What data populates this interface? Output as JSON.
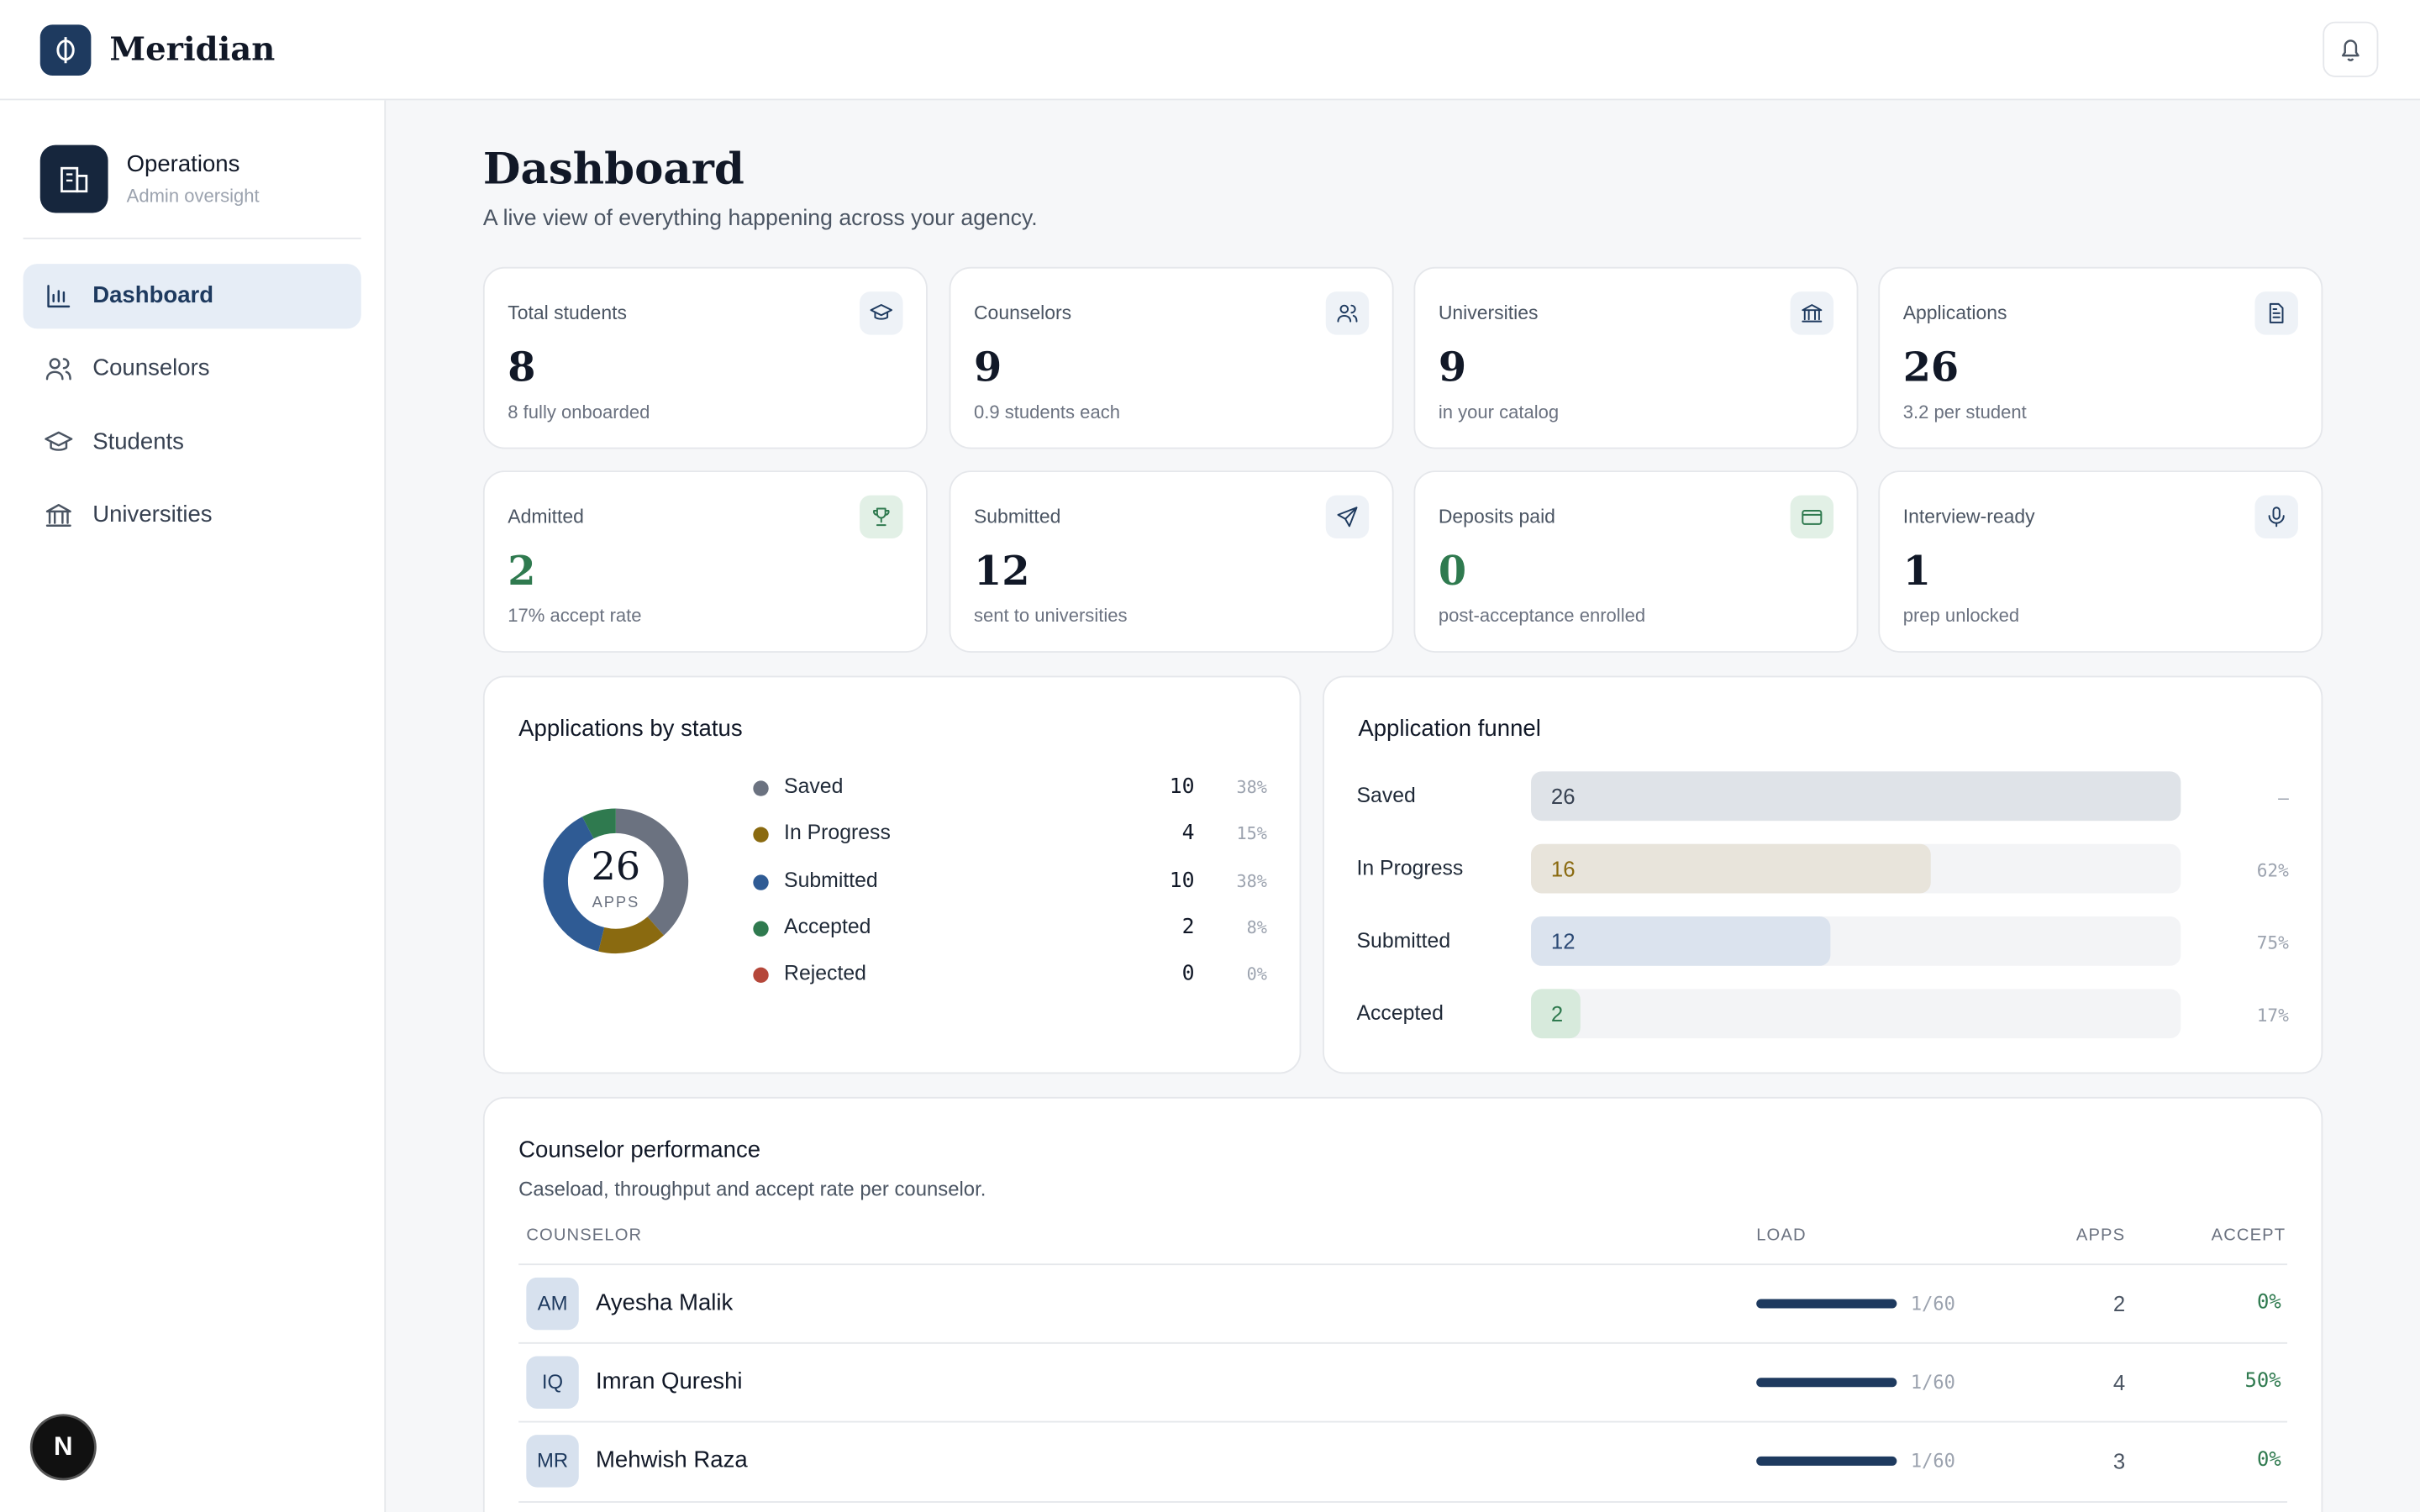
{
  "header": {
    "brand": "Meridian"
  },
  "sidebar": {
    "workspace": {
      "title": "Operations",
      "subtitle": "Admin oversight"
    },
    "nav": [
      "Dashboard",
      "Counselors",
      "Students",
      "Universities"
    ],
    "badge": "N"
  },
  "page": {
    "title": "Dashboard",
    "subtitle": "A live view of everything happening across your agency."
  },
  "stats": [
    {
      "label": "Total students",
      "value": 8,
      "note": "8 fully onboarded"
    },
    {
      "label": "Counselors",
      "value": 9,
      "note": "0.9 students each"
    },
    {
      "label": "Universities",
      "value": 9,
      "note": "in your catalog"
    },
    {
      "label": "Applications",
      "value": 26,
      "note": "3.2 per student"
    },
    {
      "label": "Admitted",
      "value": 2,
      "note": "17% accept rate"
    },
    {
      "label": "Submitted",
      "value": 12,
      "note": "sent to universities"
    },
    {
      "label": "Deposits paid",
      "value": 0,
      "note": "post-acceptance enrolled"
    },
    {
      "label": "Interview-ready",
      "value": 1,
      "note": "prep unlocked"
    }
  ],
  "status_breakdown": {
    "title": "Applications by status",
    "total": 26,
    "total_label": "APPS",
    "items": [
      {
        "name": "Saved",
        "value": 10,
        "percent": "38%",
        "color": "#6b7280"
      },
      {
        "name": "In Progress",
        "value": 4,
        "percent": "15%",
        "color": "#8a6a10"
      },
      {
        "name": "Submitted",
        "value": 10,
        "percent": "38%",
        "color": "#2f5b94"
      },
      {
        "name": "Accepted",
        "value": 2,
        "percent": "8%",
        "color": "#2f7a4f"
      },
      {
        "name": "Rejected",
        "value": 0,
        "percent": "0%",
        "color": "#b5473a"
      }
    ]
  },
  "funnel": {
    "title": "Application funnel",
    "stages": [
      {
        "name": "Saved",
        "value": 26,
        "rate": "—",
        "color": "#dfe3e8",
        "text_color": "#374151"
      },
      {
        "name": "In Progress",
        "value": 16,
        "rate": "62%",
        "color": "#e8e4db",
        "text_color": "#8a6a10"
      },
      {
        "name": "Submitted",
        "value": 12,
        "rate": "75%",
        "color": "#dbe3ee",
        "text_color": "#2c4a75"
      },
      {
        "name": "Accepted",
        "value": 2,
        "rate": "17%",
        "color": "#d7eadc",
        "text_color": "#2f7a4f"
      }
    ]
  },
  "performance": {
    "title": "Counselor performance",
    "subtitle": "Caseload, throughput and accept rate per counselor.",
    "columns": [
      "COUNSELOR",
      "LOAD",
      "APPS",
      "ACCEPT"
    ],
    "rows": [
      {
        "initials": "AM",
        "name": "Ayesha Malik",
        "load": "1/60",
        "apps": 2,
        "accept": "0%"
      },
      {
        "initials": "IQ",
        "name": "Imran Qureshi",
        "load": "1/60",
        "apps": 4,
        "accept": "50%"
      },
      {
        "initials": "MR",
        "name": "Mehwish Raza",
        "load": "1/60",
        "apps": 3,
        "accept": "0%"
      }
    ]
  }
}
